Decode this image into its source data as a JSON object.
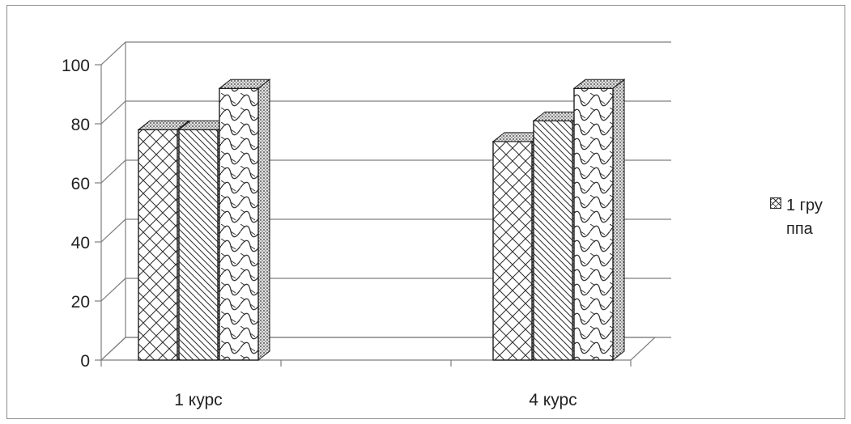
{
  "chart_data": {
    "type": "bar",
    "categories": [
      "1 курс",
      "4 курс"
    ],
    "series": [
      {
        "name": "1 группа",
        "values": [
          78,
          74
        ],
        "pattern": "crosshatch"
      },
      {
        "values": [
          78,
          81
        ],
        "pattern": "diagonal"
      },
      {
        "values": [
          92,
          92
        ],
        "pattern": "wave"
      }
    ],
    "yticks": [
      "0",
      "20",
      "40",
      "60",
      "80",
      "100"
    ],
    "ylim": [
      0,
      100
    ],
    "grid": true,
    "legend_position": "right"
  },
  "legend": {
    "label": "1 группа"
  },
  "colors": {
    "stroke": "#1a1a1a",
    "grid": "#7f7f7f",
    "fill": "#ffffff",
    "top": "#bdbdbd"
  }
}
